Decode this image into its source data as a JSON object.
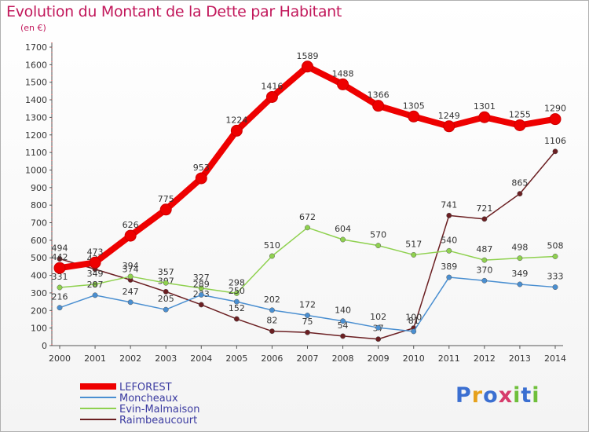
{
  "title": "Evolution du Montant de la Dette par Habitant",
  "subtitle": "(en €)",
  "logo": "Proxiti",
  "chart_data": {
    "type": "line",
    "title": "Evolution du Montant de la Dette par Habitant",
    "ylabel": "(en €)",
    "ylim": [
      0,
      1700
    ],
    "yticks": [
      0,
      100,
      200,
      300,
      400,
      500,
      600,
      700,
      800,
      900,
      1000,
      1100,
      1200,
      1300,
      1400,
      1500,
      1600,
      1700
    ],
    "x": [
      "2000",
      "2001",
      "2002",
      "2003",
      "2004",
      "2005",
      "2006",
      "2007",
      "2008",
      "2009",
      "2010",
      "2011",
      "2012",
      "2013",
      "2014"
    ],
    "grid": false,
    "legend": "bottom-left",
    "series": [
      {
        "name": "Raimbeaucourt",
        "color": "#6b1f22",
        "values": [
          494,
          435,
          374,
          307,
          233,
          152,
          82,
          75,
          54,
          37,
          100,
          741,
          721,
          865,
          1106
        ],
        "labels": [
          "494",
          "435",
          "374",
          "307",
          "233",
          "152",
          "82",
          "75",
          "54",
          "37",
          "100",
          "741",
          "721",
          "865",
          "1106"
        ]
      },
      {
        "name": "Evin-Malmaison",
        "color": "#8fd14f",
        "values": [
          331,
          349,
          394,
          357,
          327,
          298,
          510,
          672,
          604,
          570,
          517,
          540,
          487,
          498,
          508
        ],
        "labels": [
          "331",
          "349",
          "394",
          "357",
          "327",
          "298",
          "510",
          "672",
          "604",
          "570",
          "517",
          "540",
          "487",
          "498",
          "508"
        ]
      },
      {
        "name": "Moncheaux",
        "color": "#4a8fd1",
        "values": [
          216,
          287,
          247,
          205,
          289,
          250,
          202,
          172,
          140,
          102,
          81,
          389,
          370,
          349,
          333
        ],
        "labels": [
          "216",
          "287",
          "247",
          "205",
          "289",
          "250",
          "202",
          "172",
          "140",
          "102",
          "81",
          "389",
          "370",
          "349",
          "333"
        ]
      },
      {
        "name": "LEFOREST",
        "color": "#ee0000",
        "values": [
          442,
          473,
          626,
          775,
          953,
          1224,
          1416,
          1589,
          1488,
          1366,
          1305,
          1249,
          1301,
          1255,
          1290
        ],
        "labels": [
          "442",
          "473",
          "626",
          "775",
          "953",
          "1224",
          "1416",
          "1589",
          "1488",
          "1366",
          "1305",
          "1249",
          "1301",
          "1255",
          "1290"
        ]
      }
    ]
  }
}
